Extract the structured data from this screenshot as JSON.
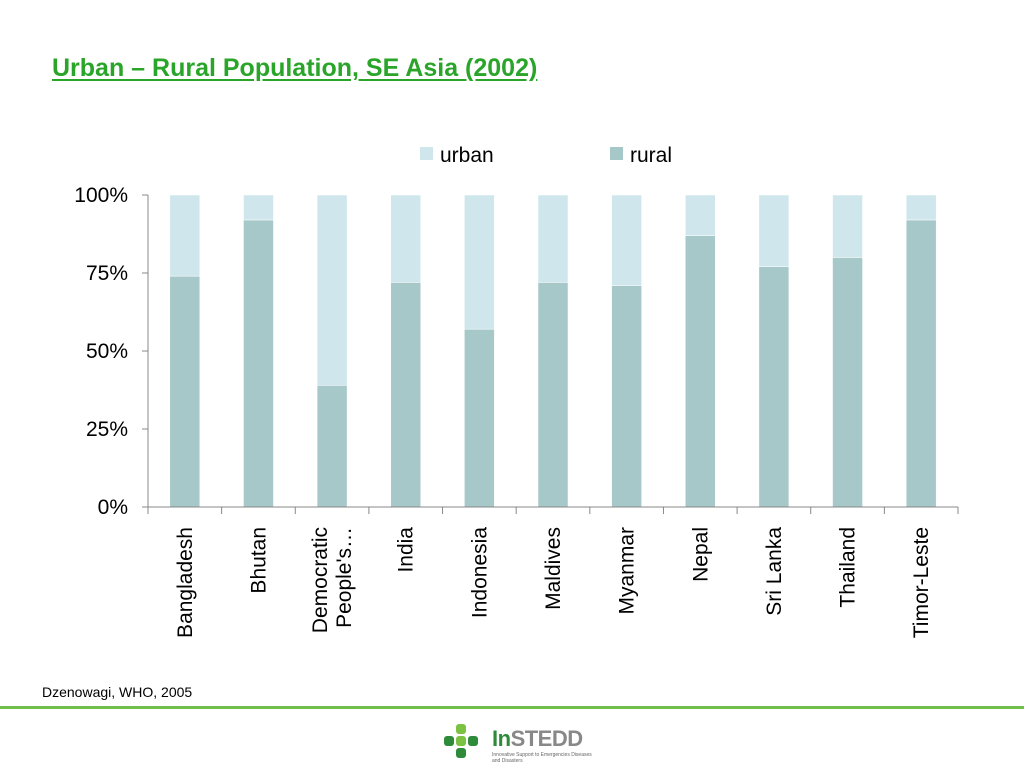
{
  "title": "Urban – Rural Population, SE Asia (2002)",
  "source": "Dzenowagi, WHO, 2005",
  "logo": {
    "prefix": "In",
    "name": "STEDD",
    "tagline": "Innovative Support to Emergencies Diseases and Disasters"
  },
  "chart_data": {
    "type": "bar",
    "stacked": true,
    "percent": true,
    "categories": [
      "Bangladesh",
      "Bhutan",
      "Democratic People's…",
      "India",
      "Indonesia",
      "Maldives",
      "Myanmar",
      "Nepal",
      "Sri Lanka",
      "Thailand",
      "Timor-Leste"
    ],
    "series": [
      {
        "name": "rural",
        "color": "#a6c8c9",
        "values": [
          74,
          92,
          39,
          72,
          57,
          72,
          71,
          87,
          77,
          80,
          92
        ]
      },
      {
        "name": "urban",
        "color": "#cfe7ec",
        "values": [
          26,
          8,
          61,
          28,
          43,
          28,
          29,
          13,
          23,
          20,
          8
        ]
      }
    ],
    "yticks": [
      "0%",
      "25%",
      "50%",
      "75%",
      "100%"
    ],
    "ylim": [
      0,
      100
    ],
    "legend_position": "top",
    "legend_order": [
      "urban",
      "rural"
    ],
    "grid": false
  }
}
